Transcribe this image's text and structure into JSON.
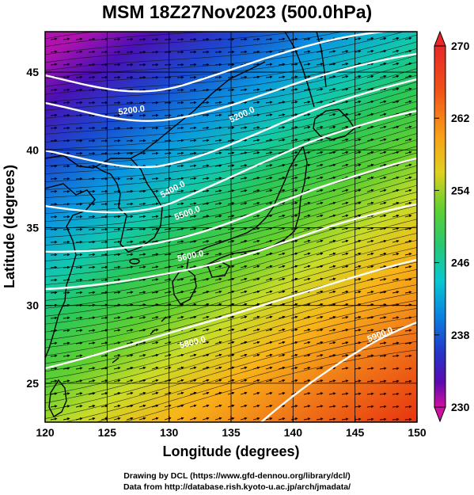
{
  "title": "MSM 18Z27Nov2023 (500.0hPa)",
  "axes": {
    "xlabel": "Longitude (degrees)",
    "ylabel": "Latitude  (degrees)",
    "x_range": [
      120,
      150
    ],
    "y_range": [
      22.5,
      47.6
    ],
    "x_ticks": [
      "120",
      "125",
      "130",
      "135",
      "140",
      "145",
      "150"
    ],
    "y_ticks": [
      "25",
      "30",
      "35",
      "40",
      "45"
    ]
  },
  "colorbar": {
    "ticks": [
      "270",
      "262",
      "254",
      "246",
      "238",
      "230"
    ],
    "range": [
      230,
      270
    ],
    "colors": [
      "#d010a0",
      "#5a0ab0",
      "#2434c8",
      "#0a80e0",
      "#08c8d0",
      "#28c860",
      "#30d038",
      "#c0dc28",
      "#f8c018",
      "#f07818",
      "#e83010",
      "#e82828"
    ]
  },
  "contours": {
    "labels": [
      "5200.0",
      "5200.0",
      "5400.0",
      "5500.0",
      "5600.0",
      "5800.0",
      "5900.0"
    ]
  },
  "footer": {
    "line1": "Drawing by DCL (https://www.gfd-dennou.org/library/dcl/)",
    "line2": "Data from http://database.rish.kyoto-u.ac.jp/arch/jmadata/"
  }
}
